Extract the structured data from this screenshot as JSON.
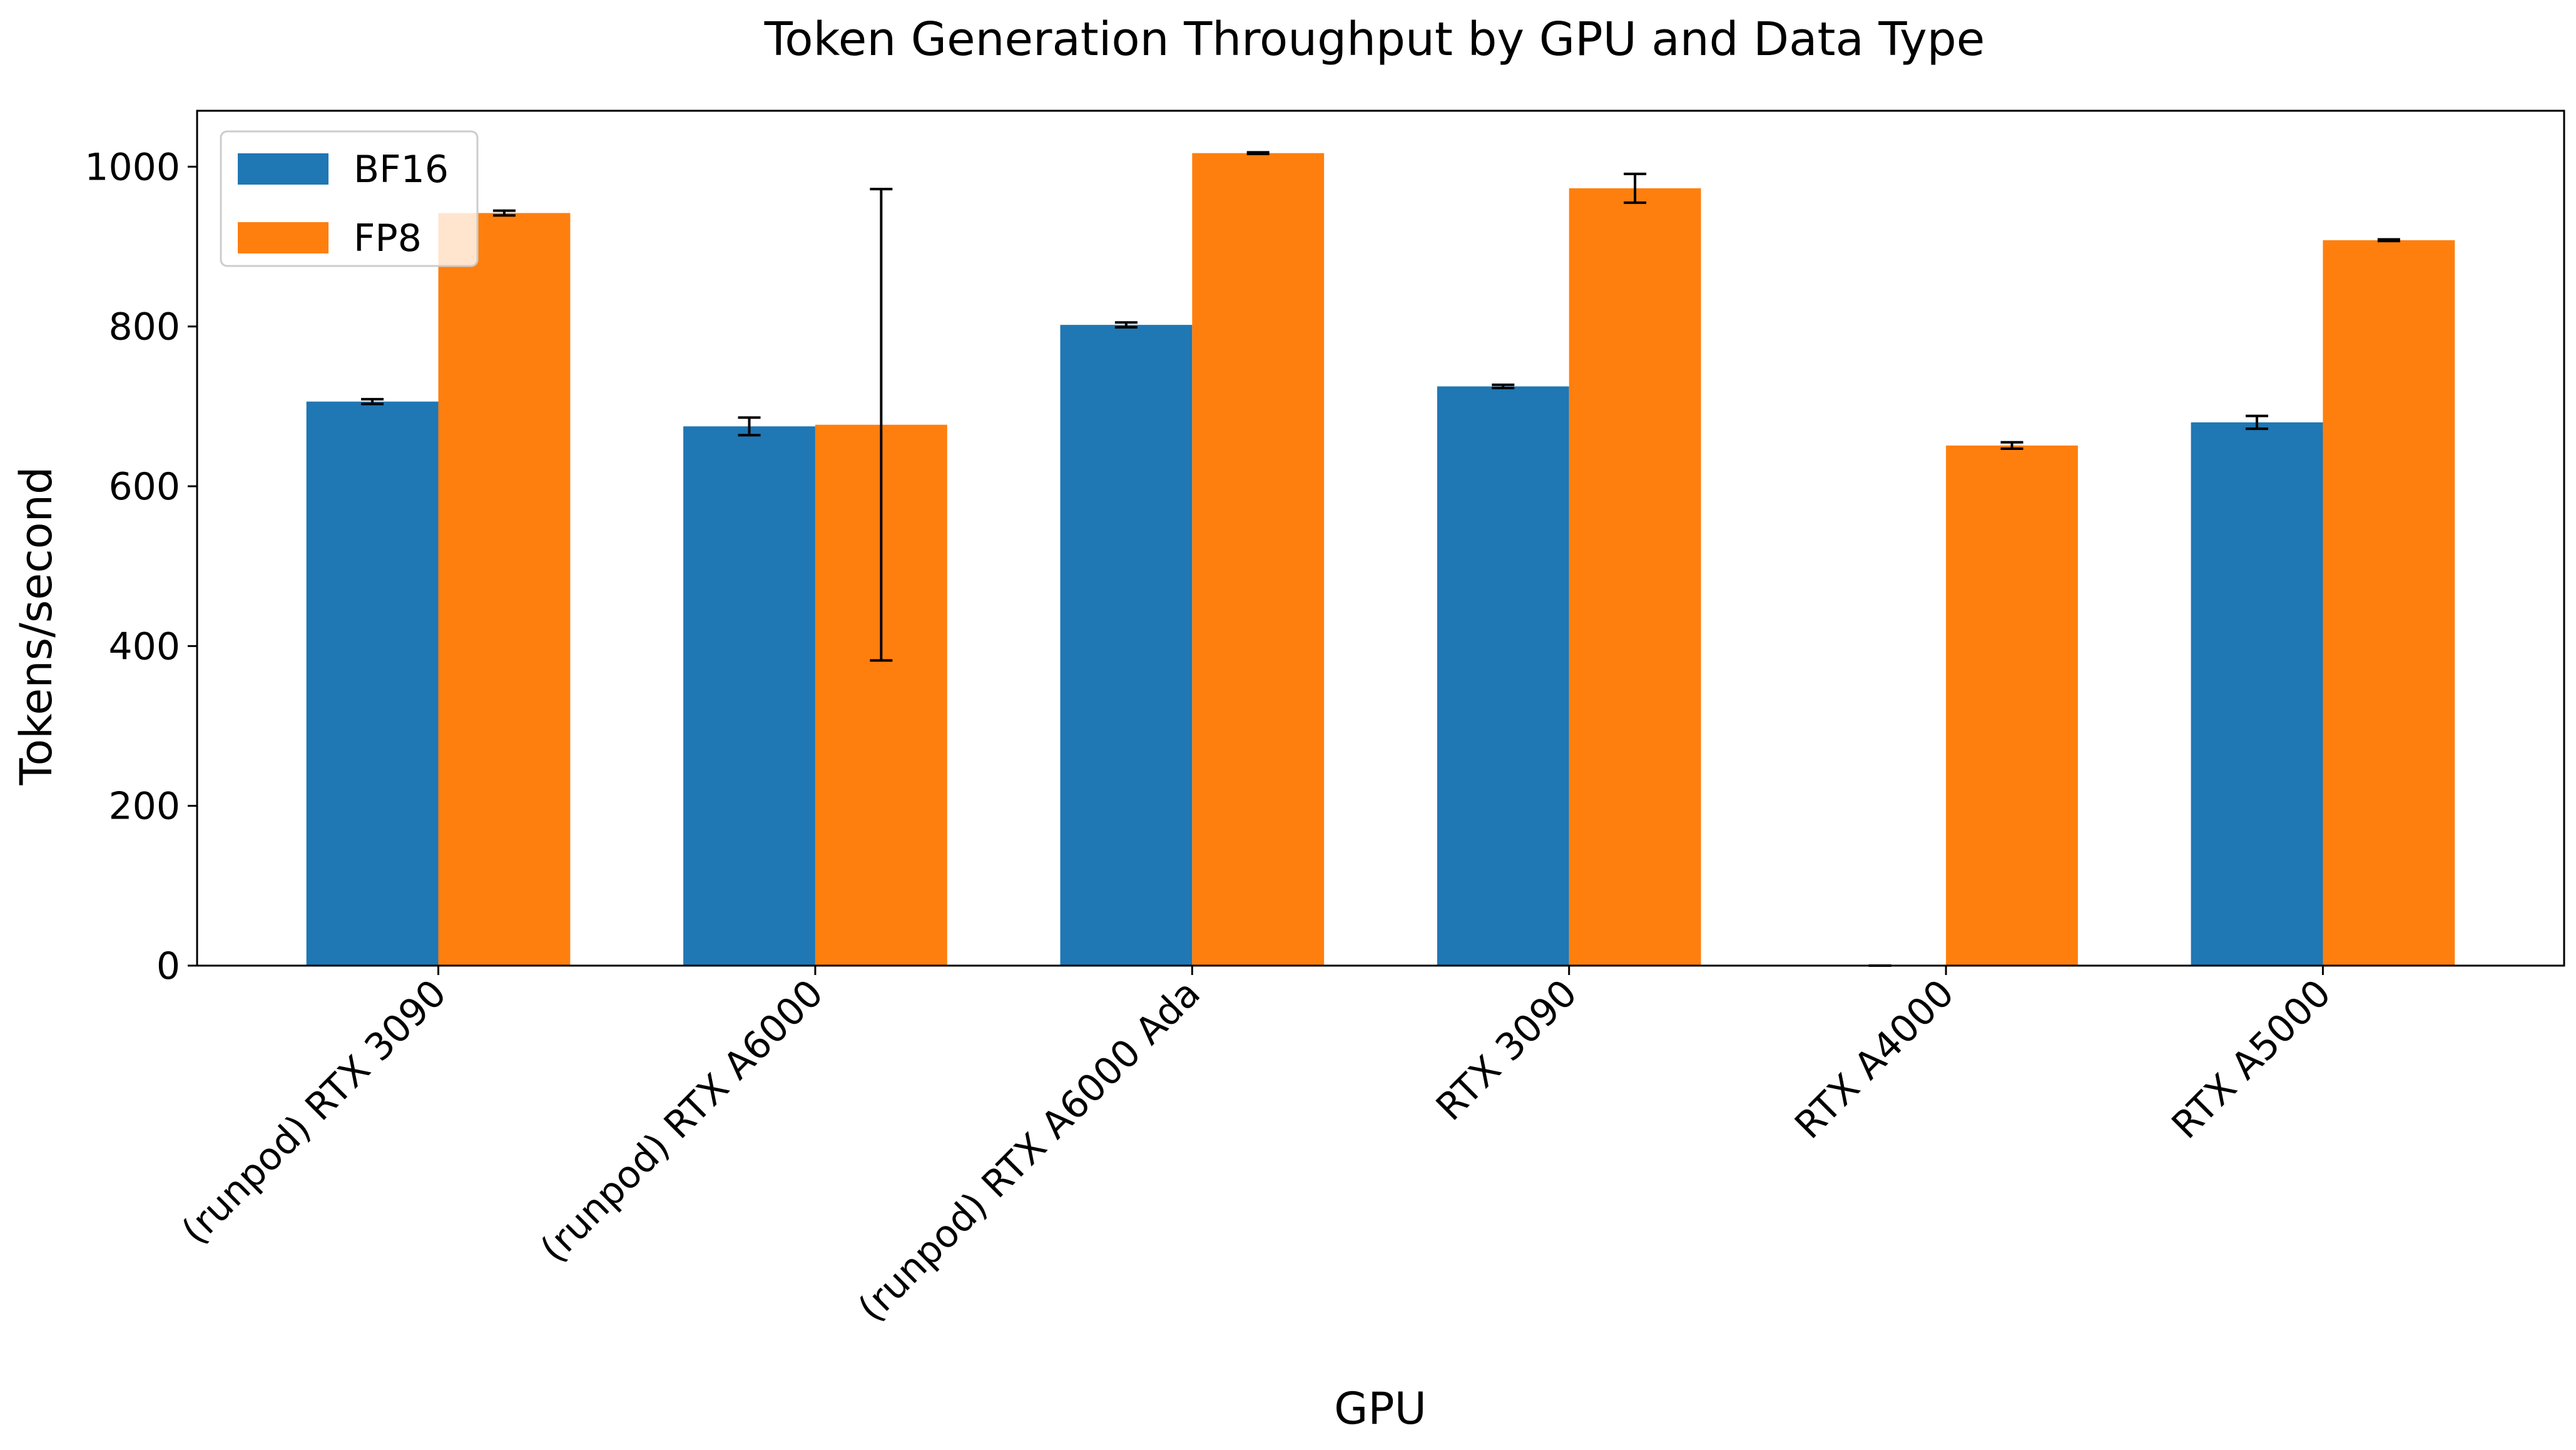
{
  "chart_data": {
    "type": "bar",
    "title": "Token Generation Throughput by GPU and Data Type",
    "xlabel": "GPU",
    "ylabel": "Tokens/second",
    "categories": [
      "(runpod) RTX 3090",
      "(runpod) RTX A6000",
      "(runpod) RTX A6000 Ada",
      "RTX 3090",
      "RTX A4000",
      "RTX A5000"
    ],
    "series": [
      {
        "name": "BF16",
        "color": "#1f77b4",
        "values": [
          706,
          675,
          802,
          725,
          0,
          680
        ],
        "errors": [
          3,
          11,
          3,
          2,
          0,
          8
        ]
      },
      {
        "name": "FP8",
        "color": "#ff7f0e",
        "values": [
          942,
          677,
          1017,
          973,
          651,
          908
        ],
        "errors": [
          3,
          295,
          1,
          18,
          4,
          1
        ]
      }
    ],
    "ylim": [
      0,
      1070
    ],
    "yticks": [
      0,
      200,
      400,
      600,
      800,
      1000
    ],
    "legend_position": "top-left",
    "grid": false
  }
}
